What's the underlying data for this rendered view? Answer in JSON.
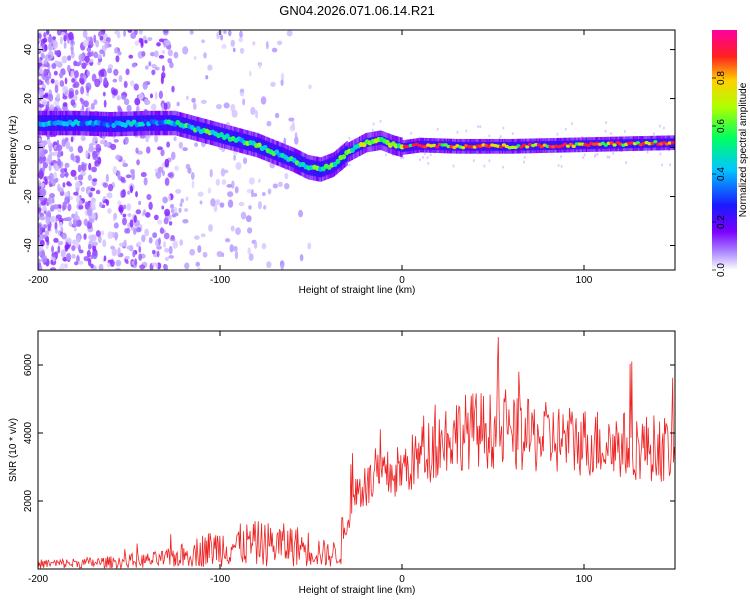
{
  "title": "GN04.2026.071.06.14.R21",
  "colors": {
    "line": "#ee2222",
    "axis": "#000000",
    "background": "#ffffff"
  },
  "chart_data": [
    {
      "type": "heatmap",
      "title": "GN04.2026.071.06.14.R21",
      "xlabel": "Height of straight line (km)",
      "ylabel": "Frequency (Hz)",
      "xlim": [
        -200,
        150
      ],
      "ylim": [
        -50,
        48
      ],
      "xticks": [
        -200,
        -100,
        0,
        100
      ],
      "yticks": [
        -40,
        -20,
        0,
        20,
        40
      ],
      "colorbar": {
        "label": "Normalized spectral amplitude",
        "range": [
          0,
          1
        ],
        "ticks": [
          "0.0",
          "0.2",
          "0.4",
          "0.6",
          "0.8"
        ],
        "tick_values": [
          0.0,
          0.2,
          0.4,
          0.6,
          0.8
        ],
        "colormap": [
          "#ffffff",
          "#b090ff",
          "#7a00ff",
          "#1a1aff",
          "#00c8ff",
          "#00ff60",
          "#b0ff00",
          "#ffd000",
          "#ff2020",
          "#ff00a0"
        ]
      },
      "ridge": {
        "x": [
          -200,
          -180,
          -160,
          -140,
          -125,
          -110,
          -95,
          -80,
          -70,
          -60,
          -52,
          -45,
          -38,
          -30,
          -20,
          -12,
          -5,
          0,
          10,
          30,
          60,
          90,
          120,
          150
        ],
        "y": [
          10,
          10,
          9.5,
          10,
          10,
          7,
          4,
          1,
          -2,
          -5,
          -8,
          -9,
          -7,
          -2,
          2,
          3,
          1,
          0,
          1,
          0.5,
          0.5,
          1,
          1.5,
          2
        ]
      }
    },
    {
      "type": "line",
      "xlabel": "Height of straight line (km)",
      "ylabel": "SNR (10 * v/v)",
      "xlim": [
        -200,
        150
      ],
      "ylim": [
        0,
        7000
      ],
      "xticks": [
        -200,
        -100,
        0,
        100
      ],
      "yticks": [
        2000,
        4000,
        6000
      ],
      "series": [
        {
          "name": "SNR",
          "x": [
            -200,
            -180,
            -160,
            -140,
            -130,
            -120,
            -110,
            -100,
            -90,
            -80,
            -70,
            -60,
            -50,
            -45,
            -40,
            -35,
            -30,
            -28,
            -25,
            -20,
            -15,
            -10,
            -5,
            0,
            5,
            10,
            15,
            20,
            25,
            30,
            35,
            40,
            45,
            50,
            55,
            60,
            70,
            80,
            90,
            100,
            110,
            120,
            130,
            140,
            150
          ],
          "y": [
            150,
            170,
            200,
            250,
            300,
            400,
            550,
            650,
            700,
            750,
            720,
            700,
            600,
            500,
            400,
            500,
            1300,
            2000,
            2300,
            2400,
            2600,
            2700,
            2800,
            2900,
            3100,
            3300,
            3500,
            3700,
            3900,
            4000,
            4050,
            4100,
            4100,
            4050,
            4000,
            3950,
            3900,
            3850,
            3800,
            3750,
            3700,
            3650,
            3600,
            3550,
            3500
          ]
        }
      ]
    }
  ]
}
